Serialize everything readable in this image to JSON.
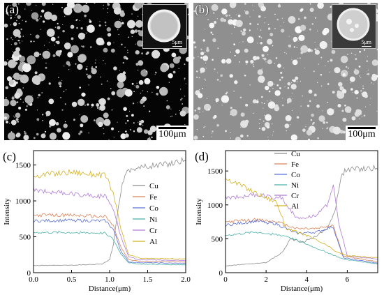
{
  "panel_a": {
    "label": "(a)",
    "scale_text": "100μm",
    "inset_scale_text": "5μm"
  },
  "panel_b": {
    "label": "(b)",
    "scale_text": "100μm",
    "inset_scale_text": "5μm"
  },
  "chart_data": [
    {
      "label": "(c)",
      "type": "line",
      "xlabel": "Distance(μm)",
      "ylabel": "Intensity",
      "xlim": [
        0,
        2.0
      ],
      "ylim": [
        0,
        1700
      ],
      "xticks": [
        "0.0",
        "0.5",
        "1.0",
        "1.5",
        "2.0"
      ],
      "yticks": [
        "0",
        "500",
        "1000",
        "1500"
      ],
      "legend": "right",
      "series": [
        {
          "name": "Cu",
          "color": "#8c8c8c",
          "x": [
            0,
            0.5,
            0.9,
            1.0,
            1.05,
            1.1,
            1.15,
            1.2,
            1.3,
            1.5,
            1.8,
            2.0
          ],
          "values": [
            100,
            105,
            120,
            180,
            400,
            800,
            1150,
            1380,
            1450,
            1480,
            1520,
            1580
          ]
        },
        {
          "name": "Fe",
          "color": "#d9845a",
          "x": [
            0,
            0.5,
            0.95,
            1.05,
            1.15,
            1.25,
            1.4,
            2.0
          ],
          "values": [
            800,
            800,
            780,
            650,
            350,
            180,
            160,
            150
          ]
        },
        {
          "name": "Co",
          "color": "#5b6fd6",
          "x": [
            0,
            0.5,
            0.95,
            1.05,
            1.15,
            1.25,
            1.4,
            2.0
          ],
          "values": [
            720,
            730,
            720,
            600,
            300,
            150,
            140,
            130
          ]
        },
        {
          "name": "Ni",
          "color": "#4ab0a8",
          "x": [
            0,
            0.5,
            0.95,
            1.05,
            1.15,
            1.25,
            1.4,
            2.0
          ],
          "values": [
            560,
            560,
            550,
            460,
            260,
            140,
            120,
            110
          ]
        },
        {
          "name": "Cr",
          "color": "#b07cd6",
          "x": [
            0,
            0.5,
            0.95,
            1.05,
            1.15,
            1.25,
            1.4,
            2.0
          ],
          "values": [
            1150,
            1100,
            1060,
            900,
            500,
            220,
            180,
            170
          ]
        },
        {
          "name": "Al",
          "color": "#d4b020",
          "x": [
            0,
            0.5,
            0.95,
            1.05,
            1.15,
            1.25,
            1.4,
            2.0
          ],
          "values": [
            1350,
            1400,
            1350,
            1100,
            600,
            250,
            200,
            190
          ]
        }
      ]
    },
    {
      "label": "(d)",
      "type": "line",
      "xlabel": "Distance(μm)",
      "ylabel": "Intensity",
      "xlim": [
        0,
        7.5
      ],
      "ylim": [
        0,
        1800
      ],
      "xticks": [
        "0",
        "2",
        "4",
        "6"
      ],
      "yticks": [
        "0",
        "500",
        "1000",
        "1500"
      ],
      "legend": "top-center",
      "series": [
        {
          "name": "Cu",
          "color": "#8c8c8c",
          "x": [
            0,
            2.0,
            2.8,
            3.2,
            3.8,
            4.5,
            5.0,
            5.4,
            5.7,
            6.0,
            7.5
          ],
          "values": [
            100,
            150,
            300,
            500,
            450,
            550,
            650,
            900,
            1450,
            1520,
            1550
          ]
        },
        {
          "name": "Fe",
          "color": "#d9845a",
          "x": [
            0,
            1.5,
            2.5,
            3.5,
            4.5,
            5.3,
            5.8,
            7.5
          ],
          "values": [
            750,
            780,
            750,
            650,
            650,
            700,
            250,
            160
          ]
        },
        {
          "name": "Co",
          "color": "#5b6fd6",
          "x": [
            0,
            1.5,
            2.5,
            3.5,
            4.5,
            5.3,
            5.8,
            7.5
          ],
          "values": [
            700,
            760,
            720,
            580,
            600,
            680,
            220,
            140
          ]
        },
        {
          "name": "Ni",
          "color": "#4ab0a8",
          "x": [
            0,
            1.5,
            3.0,
            4.0,
            5.0,
            5.8,
            7.5
          ],
          "values": [
            550,
            600,
            540,
            420,
            300,
            200,
            130
          ]
        },
        {
          "name": "Cr",
          "color": "#b07cd6",
          "x": [
            0,
            1.5,
            2.8,
            3.5,
            4.5,
            5.0,
            5.3,
            5.6,
            6.0,
            7.5
          ],
          "values": [
            1100,
            1150,
            1100,
            800,
            850,
            1000,
            1300,
            700,
            250,
            200
          ]
        },
        {
          "name": "Al",
          "color": "#d4b020",
          "x": [
            0,
            1.0,
            2.0,
            2.5,
            3.0,
            4.0,
            5.0,
            5.5,
            6.0,
            7.5
          ],
          "values": [
            1400,
            1250,
            1100,
            1050,
            650,
            550,
            400,
            300,
            250,
            220
          ]
        }
      ]
    }
  ]
}
